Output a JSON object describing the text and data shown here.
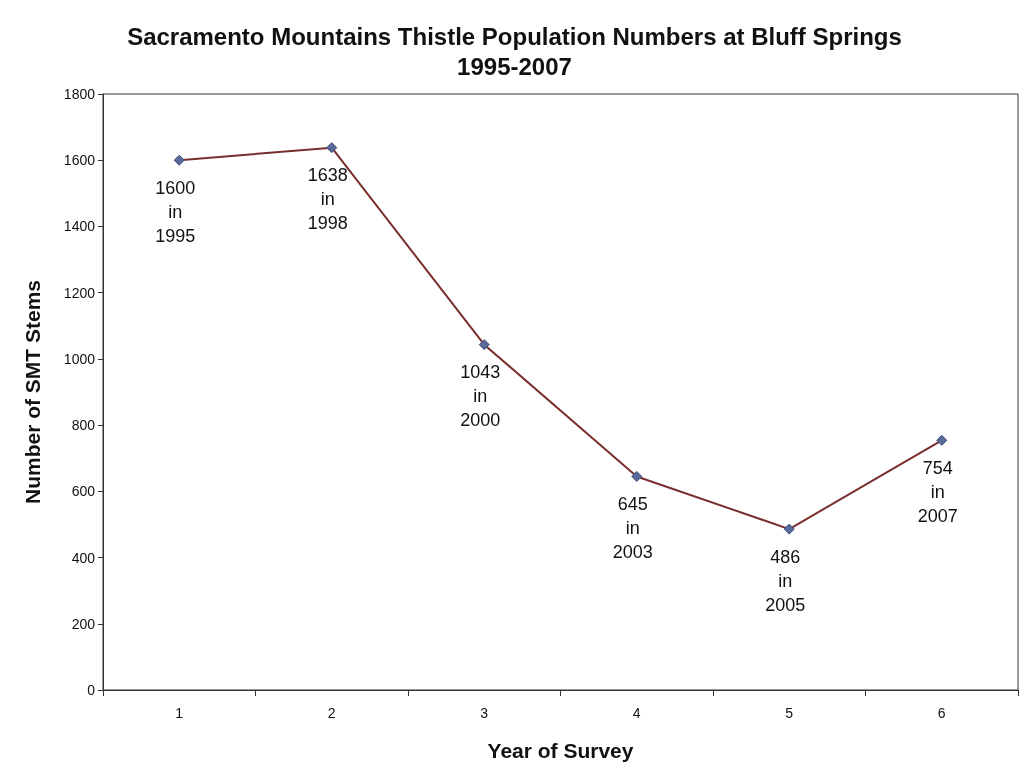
{
  "chart_data": {
    "type": "line",
    "title": "Sacramento Mountains Thistle Population Numbers at Bluff Springs\n1995-2007",
    "xlabel": "Year of Survey",
    "ylabel": "Number of SMT Stems",
    "categories": [
      "1",
      "2",
      "3",
      "4",
      "5",
      "6"
    ],
    "series": [
      {
        "color": "#7a2e2e",
        "values": [
          1600,
          1638,
          1043,
          645,
          486,
          754
        ],
        "value_labels": [
          "1600\nin\n1995",
          "1638\nin\n1998",
          "1043\nin\n2000",
          "645\nin\n2003",
          "486\nin\n2005",
          "754\nin\n2007"
        ]
      }
    ],
    "ylim": [
      0,
      1800
    ],
    "yticks": [
      0,
      200,
      400,
      600,
      800,
      1000,
      1200,
      1400,
      1600,
      1800
    ],
    "grid": false,
    "marker": "diamond",
    "line_style": "solid"
  }
}
